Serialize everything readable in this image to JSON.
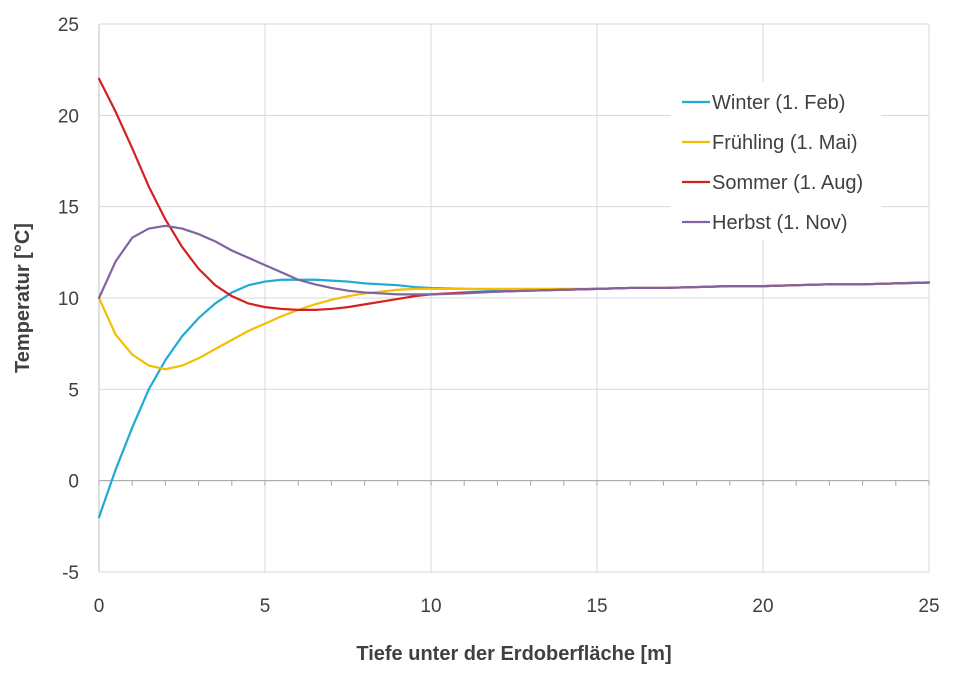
{
  "chart_data": {
    "type": "line",
    "title": "",
    "xlabel": "Tiefe unter der Erdoberfläche [m]",
    "ylabel": "Temperatur [°C]",
    "xlim": [
      0,
      25
    ],
    "ylim": [
      -5,
      25
    ],
    "xticks": [
      0,
      5,
      10,
      15,
      20,
      25
    ],
    "yticks": [
      -5,
      0,
      5,
      10,
      15,
      20,
      25
    ],
    "grid": true,
    "legend_position": "top-right",
    "x": [
      0,
      0.5,
      1,
      1.5,
      2,
      2.5,
      3,
      3.5,
      4,
      4.5,
      5,
      5.5,
      6,
      6.5,
      7,
      7.5,
      8,
      8.5,
      9,
      9.5,
      10,
      11,
      12,
      13,
      14,
      15,
      16,
      17,
      18,
      19,
      20,
      21,
      22,
      23,
      24,
      25
    ],
    "series": [
      {
        "name": "Winter (1. Feb)",
        "color": "#1EAAD7",
        "values": [
          -2.0,
          0.6,
          2.9,
          5.0,
          6.6,
          7.9,
          8.9,
          9.7,
          10.3,
          10.7,
          10.9,
          11.0,
          11.0,
          11.0,
          10.95,
          10.9,
          10.8,
          10.75,
          10.7,
          10.6,
          10.55,
          10.5,
          10.45,
          10.45,
          10.45,
          10.5,
          10.55,
          10.55,
          10.6,
          10.65,
          10.65,
          10.7,
          10.75,
          10.75,
          10.8,
          10.85
        ]
      },
      {
        "name": "Frühling (1. Mai)",
        "color": "#F5BE00",
        "values": [
          10.0,
          8.0,
          6.9,
          6.3,
          6.1,
          6.3,
          6.7,
          7.2,
          7.7,
          8.2,
          8.6,
          9.0,
          9.35,
          9.65,
          9.9,
          10.1,
          10.25,
          10.35,
          10.45,
          10.5,
          10.5,
          10.5,
          10.5,
          10.5,
          10.5,
          10.5,
          10.55,
          10.55,
          10.6,
          10.65,
          10.65,
          10.7,
          10.75,
          10.75,
          10.8,
          10.85
        ]
      },
      {
        "name": "Sommer (1. Aug)",
        "color": "#D42020",
        "values": [
          22.0,
          20.2,
          18.2,
          16.1,
          14.3,
          12.8,
          11.6,
          10.7,
          10.1,
          9.7,
          9.5,
          9.4,
          9.35,
          9.35,
          9.4,
          9.5,
          9.65,
          9.8,
          9.95,
          10.1,
          10.2,
          10.3,
          10.35,
          10.4,
          10.45,
          10.5,
          10.55,
          10.55,
          10.6,
          10.65,
          10.65,
          10.7,
          10.75,
          10.75,
          10.8,
          10.85
        ]
      },
      {
        "name": "Herbst (1. Nov)",
        "color": "#8064A2",
        "values": [
          10.0,
          12.0,
          13.3,
          13.8,
          13.95,
          13.8,
          13.5,
          13.1,
          12.6,
          12.2,
          11.8,
          11.4,
          11.0,
          10.75,
          10.55,
          10.4,
          10.3,
          10.25,
          10.2,
          10.2,
          10.2,
          10.25,
          10.35,
          10.4,
          10.45,
          10.5,
          10.55,
          10.55,
          10.6,
          10.65,
          10.65,
          10.7,
          10.75,
          10.75,
          10.8,
          10.85
        ]
      }
    ]
  }
}
